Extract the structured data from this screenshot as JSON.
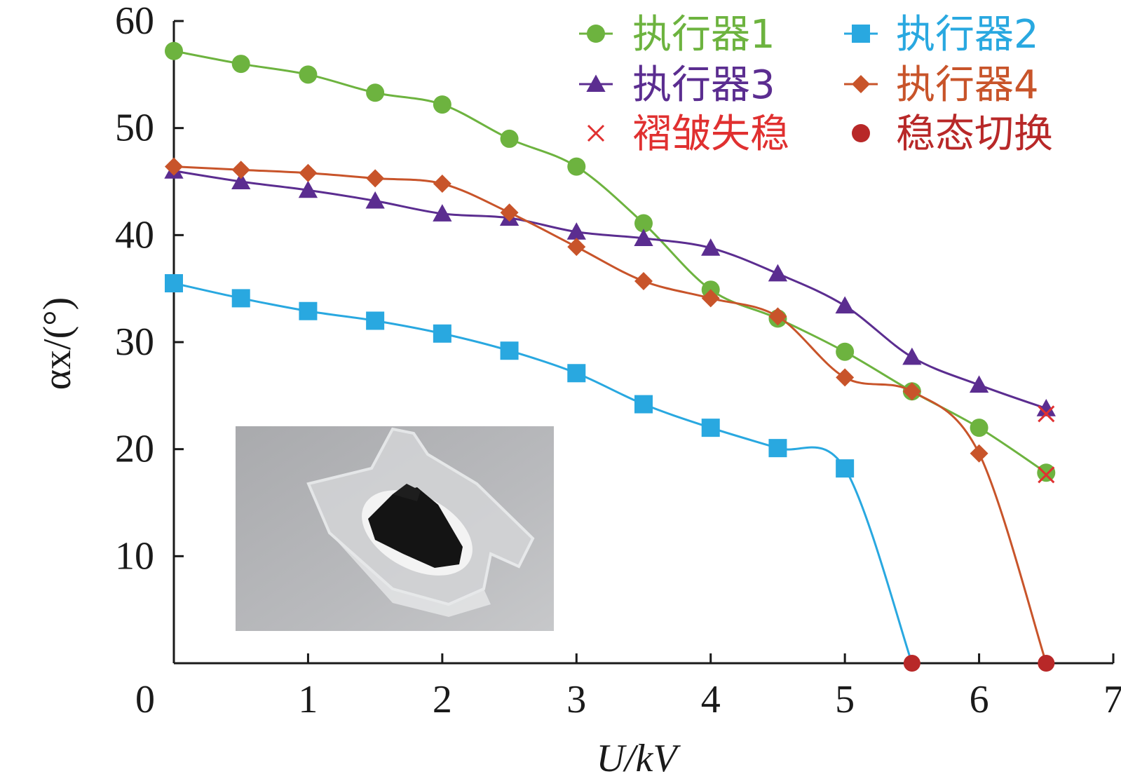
{
  "chart_data": {
    "type": "line",
    "xlabel": "U/kV",
    "ylabel": "αx/(°)",
    "xlim": [
      0,
      7
    ],
    "ylim": [
      0,
      60
    ],
    "x_ticks": [
      0,
      1,
      2,
      3,
      4,
      5,
      6,
      7
    ],
    "y_ticks": [
      10,
      20,
      30,
      40,
      50,
      60
    ],
    "grid": false,
    "legend_position": "top-right",
    "series": [
      {
        "name": "执行器1",
        "color": "#6db33f",
        "marker": "circle",
        "x": [
          0,
          0.5,
          1,
          1.5,
          2,
          2.5,
          3,
          3.5,
          4,
          4.5,
          5,
          5.5,
          6,
          6.5
        ],
        "y": [
          57.2,
          56.0,
          55.0,
          53.3,
          52.2,
          49.0,
          46.4,
          41.1,
          34.9,
          32.2,
          29.1,
          25.4,
          22.0,
          17.8
        ]
      },
      {
        "name": "执行器2",
        "color": "#29a8e0",
        "marker": "square",
        "x": [
          0,
          0.5,
          1,
          1.5,
          2,
          2.5,
          3,
          3.5,
          4,
          4.5,
          5,
          5.5
        ],
        "y": [
          35.5,
          34.1,
          32.9,
          32.0,
          30.8,
          29.2,
          27.1,
          24.2,
          22.0,
          20.1,
          18.2,
          0
        ]
      },
      {
        "name": "执行器3",
        "color": "#5b2d90",
        "marker": "triangle",
        "x": [
          0,
          0.5,
          1,
          1.5,
          2,
          2.5,
          3,
          3.5,
          4,
          4.5,
          5,
          5.5,
          6,
          6.5
        ],
        "y": [
          46.0,
          45.0,
          44.2,
          43.2,
          42.0,
          41.6,
          40.3,
          39.7,
          38.8,
          36.4,
          33.4,
          28.6,
          26.0,
          23.8
        ]
      },
      {
        "name": "执行器4",
        "color": "#c8542a",
        "marker": "diamond",
        "x": [
          0,
          0.5,
          1,
          1.5,
          2,
          2.5,
          3,
          3.5,
          4,
          4.5,
          5,
          5.5,
          6,
          6.5
        ],
        "y": [
          46.4,
          46.1,
          45.8,
          45.3,
          44.8,
          42.1,
          38.9,
          35.7,
          34.1,
          32.4,
          26.7,
          25.4,
          19.6,
          0
        ]
      }
    ],
    "special_markers": [
      {
        "name": "褶皱失稳",
        "color": "#e03030",
        "marker": "cross",
        "points": [
          [
            6.5,
            23.3
          ],
          [
            6.5,
            17.6
          ]
        ]
      },
      {
        "name": "稳态切换",
        "color": "#b82828",
        "marker": "dot",
        "points": [
          [
            5.5,
            0
          ],
          [
            6.5,
            0
          ]
        ]
      }
    ]
  }
}
